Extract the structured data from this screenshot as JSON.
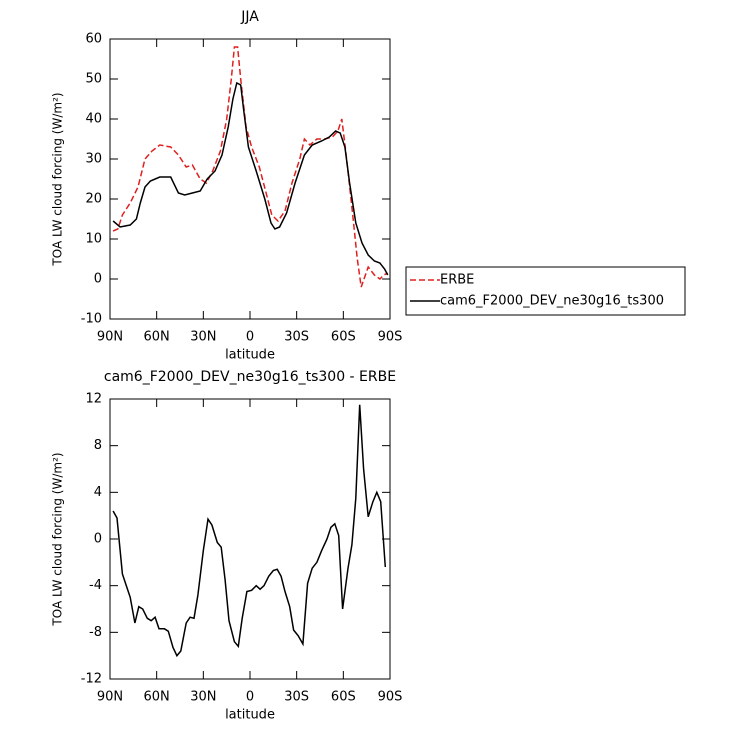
{
  "chart_data": [
    {
      "type": "line",
      "title": "JJA",
      "xlabel": "latitude",
      "ylabel": "TOA LW cloud forcing (W/m²)",
      "xlim": [
        90,
        -90
      ],
      "xticks": [
        {
          "value": 90,
          "label": "90N"
        },
        {
          "value": 60,
          "label": "60N"
        },
        {
          "value": 30,
          "label": "30N"
        },
        0,
        {
          "value": -30,
          "label": "30S"
        },
        {
          "value": -60,
          "label": "60S"
        },
        {
          "value": -90,
          "label": "90S"
        }
      ],
      "ylim": [
        -10,
        60
      ],
      "yticks": [
        -10,
        0,
        10,
        20,
        30,
        40,
        50,
        60
      ],
      "legend": "right",
      "series": [
        {
          "name": "ERBE",
          "color": "#e0201e",
          "line_style": "dashed",
          "x": [
            88,
            85,
            82,
            77,
            72,
            67.5,
            63,
            58,
            51,
            46,
            41,
            37,
            32,
            28,
            24,
            19,
            15,
            12,
            10,
            8,
            6,
            2.5,
            -1,
            -6,
            -10,
            -14,
            -18,
            -22.5,
            -27,
            -32,
            -35,
            -38.5,
            -43,
            -48,
            -53,
            -56.5,
            -59,
            -61.5,
            -65.5,
            -69,
            -71.5,
            -76,
            -80,
            -83.5,
            -86,
            -88.5
          ],
          "values": [
            12,
            12.5,
            16,
            19,
            23,
            30,
            32,
            33.5,
            33,
            31,
            28,
            28.5,
            25,
            24,
            27,
            32,
            40,
            50,
            58,
            58,
            50,
            38,
            33,
            28,
            22,
            16,
            14.5,
            17,
            24,
            30,
            35,
            33.5,
            35,
            35,
            35.5,
            37,
            40,
            32,
            18,
            5,
            -2,
            3,
            1,
            0,
            1,
            1.5
          ]
        },
        {
          "name": "cam6_F2000_DEV_ne30g16_ts300",
          "color": "#000000",
          "line_style": "solid",
          "x": [
            88,
            83.5,
            77,
            73,
            70.5,
            67.5,
            64,
            58,
            51,
            46,
            42,
            37,
            32,
            27.5,
            22.5,
            18,
            14,
            11,
            8.5,
            6,
            4,
            1,
            -4,
            -9.5,
            -13.5,
            -16,
            -19,
            -23.5,
            -29,
            -35,
            -40,
            -46,
            -51,
            -55,
            -58,
            -61,
            -64,
            -68,
            -72,
            -76,
            -80,
            -83.5,
            -86.5,
            -88.5
          ],
          "values": [
            14.5,
            13,
            13.5,
            15,
            19,
            23,
            24.5,
            25.5,
            25.5,
            21.5,
            21,
            21.5,
            22,
            25,
            27,
            31,
            38,
            45,
            49,
            48.5,
            42,
            33,
            27,
            20,
            14,
            12.5,
            13,
            16.5,
            24,
            31,
            33.5,
            34.5,
            35.5,
            37,
            36.5,
            33,
            24,
            14,
            9,
            6,
            4.5,
            4,
            2.5,
            1
          ]
        }
      ]
    },
    {
      "type": "line",
      "title": "cam6_F2000_DEV_ne30g16_ts300 - ERBE",
      "xlabel": "latitude",
      "ylabel": "TOA LW cloud forcing (W/m²)",
      "xlim": [
        90,
        -90
      ],
      "xticks": [
        {
          "value": 90,
          "label": "90N"
        },
        {
          "value": 60,
          "label": "60N"
        },
        {
          "value": 30,
          "label": "30N"
        },
        0,
        {
          "value": -30,
          "label": "30S"
        },
        {
          "value": -60,
          "label": "60S"
        },
        {
          "value": -90,
          "label": "90S"
        }
      ],
      "ylim": [
        -12,
        12
      ],
      "yticks": [
        -12,
        -8,
        -4,
        0,
        4,
        8,
        12
      ],
      "series": [
        {
          "color": "#000000",
          "line_style": "solid",
          "x": [
            88,
            85.5,
            82,
            77,
            74,
            71.5,
            69,
            66,
            63.5,
            61,
            58.5,
            55,
            52.5,
            49.5,
            47,
            44.5,
            41,
            38.5,
            36,
            33.5,
            30,
            27,
            24.5,
            21,
            18.5,
            16,
            13.5,
            10,
            7.5,
            5,
            2,
            -1,
            -4,
            -6.5,
            -9,
            -12,
            -15,
            -17.5,
            -20,
            -22.5,
            -25.5,
            -28,
            -31,
            -34,
            -37,
            -40,
            -43,
            -46,
            -49.5,
            -52,
            -54.5,
            -57,
            -59.5,
            -63,
            -65.5,
            -68,
            -70.5,
            -73,
            -76,
            -79,
            -81.5,
            -84,
            -87
          ],
          "values": [
            2.4,
            1.8,
            -3,
            -5,
            -7.2,
            -5.8,
            -6,
            -6.8,
            -7,
            -6.7,
            -7.7,
            -7.7,
            -7.9,
            -9.3,
            -10,
            -9.6,
            -7.2,
            -6.7,
            -6.8,
            -4.8,
            -1,
            1.7,
            1.2,
            -0.3,
            -0.7,
            -3.5,
            -7,
            -8.8,
            -9.2,
            -6.8,
            -4.5,
            -4.4,
            -4,
            -4.3,
            -4,
            -3.2,
            -2.7,
            -2.6,
            -3.2,
            -4.5,
            -5.8,
            -7.8,
            -8.3,
            -9,
            -3.8,
            -2.5,
            -2,
            -1,
            0,
            1,
            1.3,
            0.3,
            -6,
            -2.5,
            -0.5,
            3.5,
            11.5,
            6,
            1.9,
            3.2,
            4,
            3.2,
            -2.4
          ]
        }
      ]
    }
  ]
}
